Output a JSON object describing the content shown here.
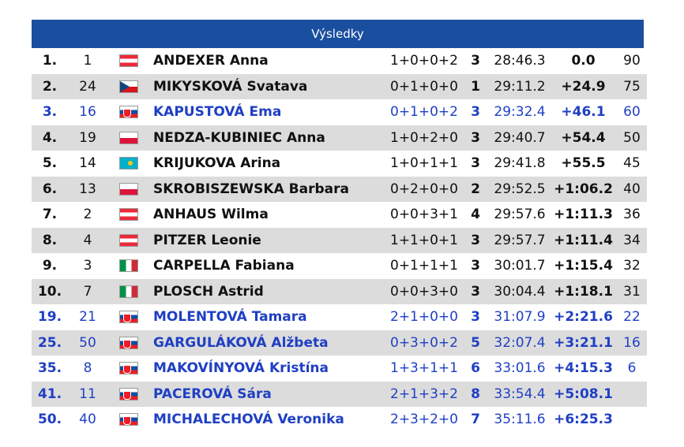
{
  "header": {
    "title": "Výsledky"
  },
  "rows": [
    {
      "rank": "1.",
      "bib": "1",
      "flag": "aut-flag-icon",
      "name": "ANDEXER Anna",
      "shooting": "1+0+0+2",
      "penalties": "3",
      "time": "28:46.3",
      "gap": "0.0",
      "points": "90",
      "alt": false,
      "svk": false
    },
    {
      "rank": "2.",
      "bib": "24",
      "flag": "cze-flag-icon",
      "name": "MIKYSKOVÁ Svatava",
      "shooting": "0+1+0+0",
      "penalties": "1",
      "time": "29:11.2",
      "gap": "+24.9",
      "points": "75",
      "alt": true,
      "svk": false
    },
    {
      "rank": "3.",
      "bib": "16",
      "flag": "svk-flag-icon",
      "name": "KAPUSTOVÁ Ema",
      "shooting": "0+1+0+2",
      "penalties": "3",
      "time": "29:32.4",
      "gap": "+46.1",
      "points": "60",
      "alt": false,
      "svk": true
    },
    {
      "rank": "4.",
      "bib": "19",
      "flag": "pol-flag-icon",
      "name": "NEDZA-KUBINIEC Anna",
      "shooting": "1+0+2+0",
      "penalties": "3",
      "time": "29:40.7",
      "gap": "+54.4",
      "points": "50",
      "alt": true,
      "svk": false
    },
    {
      "rank": "5.",
      "bib": "14",
      "flag": "kaz-flag-icon",
      "name": "KRIJUKOVA Arina",
      "shooting": "1+0+1+1",
      "penalties": "3",
      "time": "29:41.8",
      "gap": "+55.5",
      "points": "45",
      "alt": false,
      "svk": false
    },
    {
      "rank": "6.",
      "bib": "13",
      "flag": "pol-flag-icon",
      "name": "SKROBISZEWSKA Barbara",
      "shooting": "0+2+0+0",
      "penalties": "2",
      "time": "29:52.5",
      "gap": "+1:06.2",
      "points": "40",
      "alt": true,
      "svk": false
    },
    {
      "rank": "7.",
      "bib": "2",
      "flag": "aut-flag-icon",
      "name": "ANHAUS Wilma",
      "shooting": "0+0+3+1",
      "penalties": "4",
      "time": "29:57.6",
      "gap": "+1:11.3",
      "points": "36",
      "alt": false,
      "svk": false
    },
    {
      "rank": "8.",
      "bib": "4",
      "flag": "aut-flag-icon",
      "name": "PITZER Leonie",
      "shooting": "1+1+0+1",
      "penalties": "3",
      "time": "29:57.7",
      "gap": "+1:11.4",
      "points": "34",
      "alt": true,
      "svk": false
    },
    {
      "rank": "9.",
      "bib": "3",
      "flag": "ita-flag-icon",
      "name": "CARPELLA Fabiana",
      "shooting": "0+1+1+1",
      "penalties": "3",
      "time": "30:01.7",
      "gap": "+1:15.4",
      "points": "32",
      "alt": false,
      "svk": false
    },
    {
      "rank": "10.",
      "bib": "7",
      "flag": "ita-flag-icon",
      "name": "PLOSCH Astrid",
      "shooting": "0+0+3+0",
      "penalties": "3",
      "time": "30:04.4",
      "gap": "+1:18.1",
      "points": "31",
      "alt": true,
      "svk": false
    },
    {
      "rank": "19.",
      "bib": "21",
      "flag": "svk-flag-icon",
      "name": "MOLENTOVÁ Tamara",
      "shooting": "2+1+0+0",
      "penalties": "3",
      "time": "31:07.9",
      "gap": "+2:21.6",
      "points": "22",
      "alt": false,
      "svk": true
    },
    {
      "rank": "25.",
      "bib": "50",
      "flag": "svk-flag-icon",
      "name": "GARGULÁKOVÁ Alžbeta",
      "shooting": "0+3+0+2",
      "penalties": "5",
      "time": "32:07.4",
      "gap": "+3:21.1",
      "points": "16",
      "alt": true,
      "svk": true
    },
    {
      "rank": "35.",
      "bib": "8",
      "flag": "svk-flag-icon",
      "name": "MAKOVÍNYOVÁ Kristína",
      "shooting": "1+3+1+1",
      "penalties": "6",
      "time": "33:01.6",
      "gap": "+4:15.3",
      "points": "6",
      "alt": false,
      "svk": true
    },
    {
      "rank": "41.",
      "bib": "11",
      "flag": "svk-flag-icon",
      "name": "PACEROVÁ Sára",
      "shooting": "2+1+3+2",
      "penalties": "8",
      "time": "33:54.4",
      "gap": "+5:08.1",
      "points": "",
      "alt": true,
      "svk": true
    },
    {
      "rank": "50.",
      "bib": "40",
      "flag": "svk-flag-icon",
      "name": "MICHALECHOVÁ Veronika",
      "shooting": "2+3+2+0",
      "penalties": "7",
      "time": "35:11.6",
      "gap": "+6:25.3",
      "points": "",
      "alt": false,
      "svk": true
    }
  ],
  "colors": {
    "header_bg": "#1a4e9f",
    "svk_text": "#1f3fc4",
    "alt_row": "#dcdcdc"
  }
}
